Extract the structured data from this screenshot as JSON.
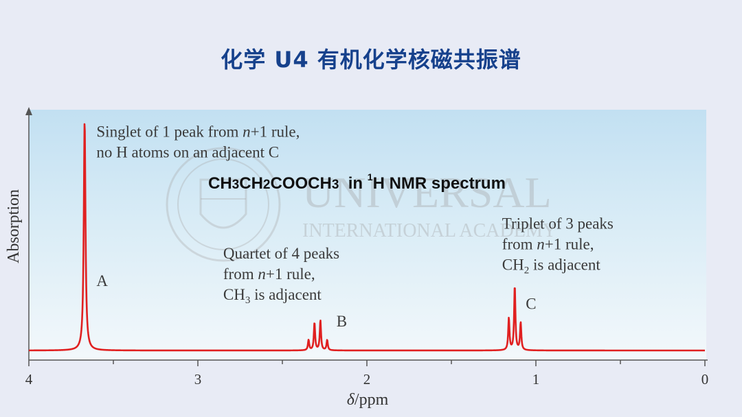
{
  "title": "化学 U4 有机化学核磁共振谱",
  "watermark": {
    "line1": "UNIVERSAL",
    "line2": "INTERNATIONAL ACADEMY"
  },
  "chart_data": {
    "type": "line",
    "title": {
      "formula_parts": [
        {
          "text": "CH",
          "style": "normal"
        },
        {
          "text": "3",
          "style": "small"
        },
        {
          "text": "CH",
          "style": "normal"
        },
        {
          "text": "2",
          "style": "small"
        },
        {
          "text": "COOCH",
          "style": "normal"
        },
        {
          "text": "3",
          "style": "small"
        },
        {
          "text": "  in ",
          "style": "normal"
        },
        {
          "text": "1",
          "style": "sup"
        },
        {
          "text": "H NMR spectrum",
          "style": "normal"
        }
      ]
    },
    "xlabel": {
      "symbol": "δ",
      "unit": "/ppm"
    },
    "ylabel": "Absorption",
    "xlim": [
      4,
      0
    ],
    "x_reversed": true,
    "ylim": [
      0,
      1
    ],
    "x_ticks": [
      4,
      3,
      2,
      1,
      0
    ],
    "minor_ticks": [
      3.5,
      2.5,
      1.5,
      0.5
    ],
    "line_color": "#e02020",
    "series": [
      {
        "peaks": [
          {
            "group": "A",
            "shift": 3.67,
            "height": 1.0
          },
          {
            "group": "B",
            "shift": 2.345,
            "height": 0.045
          },
          {
            "group": "B",
            "shift": 2.31,
            "height": 0.12
          },
          {
            "group": "B",
            "shift": 2.275,
            "height": 0.13
          },
          {
            "group": "B",
            "shift": 2.235,
            "height": 0.045
          },
          {
            "group": "C",
            "shift": 1.16,
            "height": 0.14
          },
          {
            "group": "C",
            "shift": 1.125,
            "height": 0.28
          },
          {
            "group": "C",
            "shift": 1.09,
            "height": 0.12
          }
        ]
      }
    ],
    "peak_labels": [
      {
        "label": "A",
        "shift": 3.6,
        "height": 0.28
      },
      {
        "label": "B",
        "shift": 2.18,
        "height": 0.105
      },
      {
        "label": "C",
        "shift": 1.06,
        "height": 0.18
      }
    ],
    "annotations": [
      {
        "id": "singlet",
        "shift": 3.6,
        "height": 0.93,
        "lines": [
          [
            {
              "t": "Singlet of 1 peak from "
            },
            {
              "t": "n",
              "i": true
            },
            {
              "t": "+1 rule,"
            }
          ],
          [
            {
              "t": "no H atoms on an adjacent C"
            }
          ]
        ]
      },
      {
        "id": "quartet",
        "shift": 2.85,
        "height": 0.4,
        "lines": [
          [
            {
              "t": "Quartet of 4 peaks"
            }
          ],
          [
            {
              "t": "from "
            },
            {
              "t": "n",
              "i": true
            },
            {
              "t": "+1 rule,"
            }
          ],
          [
            {
              "t": "CH"
            },
            {
              "t": "3",
              "sub": true
            },
            {
              "t": " is adjacent"
            }
          ]
        ]
      },
      {
        "id": "triplet",
        "shift": 1.2,
        "height": 0.53,
        "lines": [
          [
            {
              "t": "Triplet of 3 peaks"
            }
          ],
          [
            {
              "t": "from "
            },
            {
              "t": "n",
              "i": true
            },
            {
              "t": "+1 rule,"
            }
          ],
          [
            {
              "t": "CH"
            },
            {
              "t": "2",
              "sub": true
            },
            {
              "t": " is adjacent"
            }
          ]
        ]
      }
    ]
  }
}
